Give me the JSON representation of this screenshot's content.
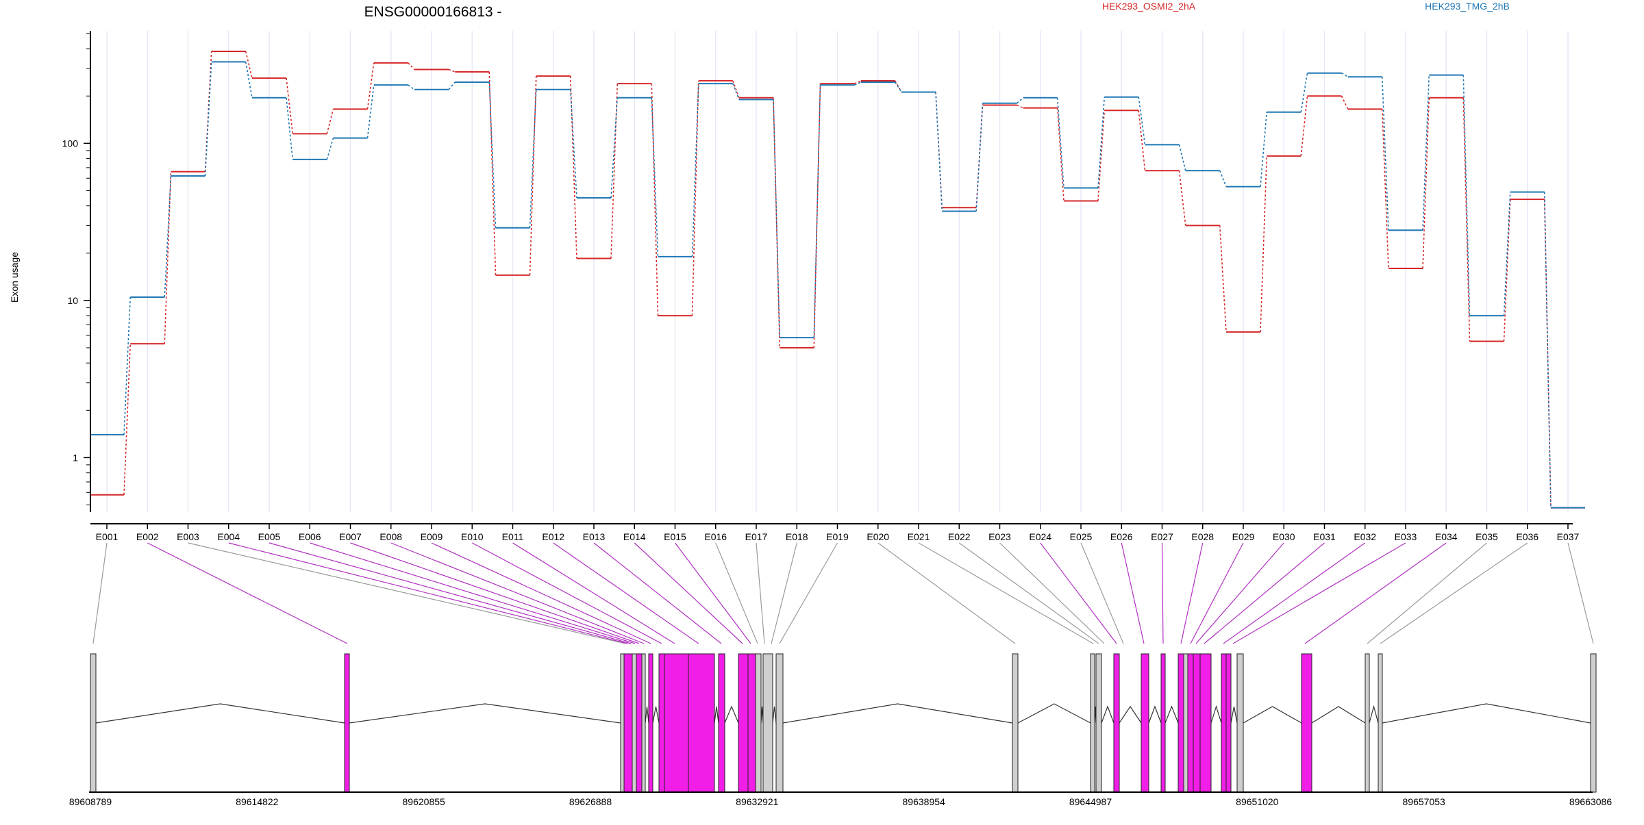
{
  "title": "ENSG00000166813 -",
  "legend": [
    {
      "label": "HEK293_OSMI2_2hA",
      "color": "#d62728"
    },
    {
      "label": "HEK293_TMG_2hB",
      "color": "#1f77b4"
    }
  ],
  "colors": {
    "grid": "#e6e9f5",
    "axis": "#000000",
    "exon_highlight": "#f01ee6",
    "exon_normal": "#cfcfcf",
    "connector_highlight": "#b030c0",
    "connector_normal": "#9a9a9a"
  },
  "chart_data": {
    "type": "line",
    "ylabel": "Exon usage",
    "y_scale": "log",
    "ylim": [
      0.45,
      520
    ],
    "yticks": [
      1,
      10,
      100
    ],
    "ytick_labels": [
      "1",
      "10",
      "100"
    ],
    "grid": "vertical per exon",
    "legend_position": "top",
    "categories": [
      "E001",
      "E002",
      "E003",
      "E004",
      "E005",
      "E006",
      "E007",
      "E008",
      "E009",
      "E010",
      "E011",
      "E012",
      "E013",
      "E014",
      "E015",
      "E016",
      "E017",
      "E018",
      "E019",
      "E020",
      "E021",
      "E022",
      "E023",
      "E024",
      "E025",
      "E026",
      "E027",
      "E028",
      "E029",
      "E030",
      "E031",
      "E032",
      "E033",
      "E034",
      "E035",
      "E036",
      "E037"
    ],
    "series": [
      {
        "name": "HEK293_OSMI2_2hA",
        "values": [
          0.58,
          5.3,
          66,
          385,
          260,
          115,
          165,
          325,
          295,
          285,
          14.5,
          268,
          18.5,
          240,
          8,
          250,
          195,
          5,
          240,
          250,
          212,
          39,
          175,
          168,
          43,
          162,
          67,
          30,
          6.3,
          83,
          200,
          165,
          16,
          195,
          5.5,
          44,
          0.48
        ]
      },
      {
        "name": "HEK293_TMG_2hB",
        "values": [
          1.4,
          10.5,
          62,
          330,
          195,
          79,
          108,
          235,
          220,
          245,
          29,
          220,
          45,
          195,
          19,
          240,
          190,
          5.8,
          235,
          245,
          212,
          37,
          180,
          195,
          52,
          197,
          98,
          67,
          53,
          158,
          280,
          265,
          28,
          272,
          8,
          49,
          0.48
        ]
      }
    ]
  },
  "gene_model": {
    "coordinate_labels": [
      "89608789",
      "89614822",
      "89620855",
      "89626888",
      "89632921",
      "89638954",
      "89644987",
      "89651020",
      "89657053",
      "89663086"
    ]
  }
}
